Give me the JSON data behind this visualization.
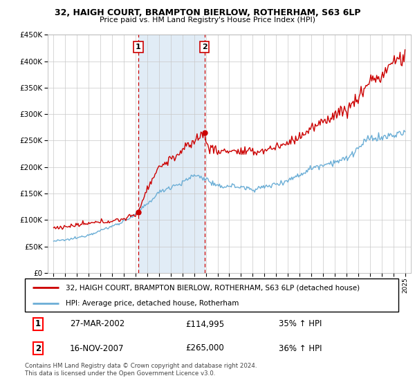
{
  "title1": "32, HAIGH COURT, BRAMPTON BIERLOW, ROTHERHAM, S63 6LP",
  "title2": "Price paid vs. HM Land Registry's House Price Index (HPI)",
  "sale1_date": "27-MAR-2002",
  "sale1_price": 114995,
  "sale1_hpi": "35% ↑ HPI",
  "sale2_date": "16-NOV-2007",
  "sale2_price": 265000,
  "sale2_hpi": "36% ↑ HPI",
  "legend1": "32, HAIGH COURT, BRAMPTON BIERLOW, ROTHERHAM, S63 6LP (detached house)",
  "legend2": "HPI: Average price, detached house, Rotherham",
  "footer": "Contains HM Land Registry data © Crown copyright and database right 2024.\nThis data is licensed under the Open Government Licence v3.0.",
  "sale1_x": 2002.23,
  "sale1_marker_price": 114995,
  "sale2_x": 2007.88,
  "sale2_marker_price": 265000,
  "vline1_x": 2002.23,
  "vline2_x": 2007.88,
  "ylim": [
    0,
    450000
  ],
  "xlim_left": 1994.5,
  "xlim_right": 2025.5,
  "hpi_color": "#6baed6",
  "price_color": "#cc0000",
  "vline_color": "#cc0000",
  "bg_color": "#dce9f5",
  "hpi_base_points_x": [
    1995,
    1996,
    1997,
    1998,
    1999,
    2000,
    2001,
    2002,
    2003,
    2004,
    2005,
    2006,
    2007,
    2008,
    2009,
    2010,
    2011,
    2012,
    2013,
    2014,
    2015,
    2016,
    2017,
    2018,
    2019,
    2020,
    2021,
    2022,
    2023,
    2024,
    2025
  ],
  "hpi_base_points_y": [
    60000,
    62000,
    66000,
    72000,
    80000,
    88000,
    98000,
    110000,
    130000,
    152000,
    163000,
    170000,
    185000,
    178000,
    162000,
    165000,
    162000,
    158000,
    162000,
    168000,
    175000,
    185000,
    198000,
    205000,
    210000,
    215000,
    235000,
    255000,
    255000,
    260000,
    265000
  ],
  "price_base_points_x": [
    1995,
    1996,
    1997,
    1998,
    1999,
    2000,
    2001,
    2002,
    2002.23,
    2003,
    2004,
    2005,
    2006,
    2007,
    2007.88,
    2008,
    2009,
    2010,
    2011,
    2012,
    2013,
    2014,
    2015,
    2016,
    2017,
    2018,
    2019,
    2020,
    2021,
    2022,
    2023,
    2024,
    2024.5
  ],
  "price_base_points_y": [
    85000,
    87000,
    90000,
    93000,
    96000,
    98000,
    102000,
    110000,
    114995,
    160000,
    200000,
    215000,
    230000,
    250000,
    265000,
    245000,
    228000,
    232000,
    228000,
    228000,
    232000,
    238000,
    245000,
    258000,
    272000,
    285000,
    300000,
    308000,
    330000,
    365000,
    370000,
    400000,
    405000
  ]
}
